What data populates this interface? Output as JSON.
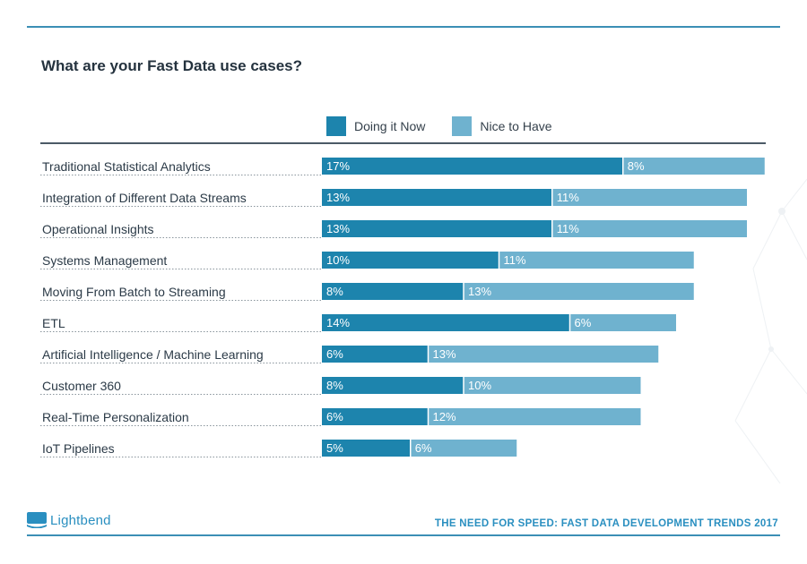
{
  "title": "What are your Fast Data use cases?",
  "colors": {
    "doing": "#1d84ad",
    "nice": "#6fb2cf",
    "accent": "#2a8fc0",
    "rule": "#3b8fb5"
  },
  "legend": [
    {
      "label": "Doing it Now",
      "color": "#1d84ad"
    },
    {
      "label": "Nice to Have",
      "color": "#6fb2cf"
    }
  ],
  "chart_data": {
    "type": "bar",
    "orientation": "horizontal",
    "stacked": true,
    "categories": [
      "Traditional Statistical Analytics",
      "Integration of Different Data Streams",
      "Operational  Insights",
      "Systems Management",
      "Moving From Batch to Streaming",
      "ETL",
      "Artificial Intelligence / Machine Learning",
      "Customer 360",
      "Real-Time Personalization",
      "IoT Pipelines"
    ],
    "series": [
      {
        "name": "Doing it Now",
        "values": [
          17,
          13,
          13,
          10,
          8,
          14,
          6,
          8,
          6,
          5
        ],
        "labels": [
          "17%",
          "13%",
          "13%",
          "10%",
          "8%",
          "14%",
          "6%",
          "8%",
          "6%",
          "5%"
        ]
      },
      {
        "name": "Nice to Have",
        "values": [
          8,
          11,
          11,
          11,
          13,
          6,
          13,
          10,
          12,
          6
        ],
        "labels": [
          "8%",
          "11%",
          "11%",
          "11%",
          "13%",
          "6%",
          "13%",
          "10%",
          "12%",
          "6%"
        ]
      }
    ],
    "legend_position": "top",
    "grid": false
  },
  "footer": {
    "logo_text": "Lightbend",
    "report_title": "THE NEED FOR SPEED: FAST DATA DEVELOPMENT TRENDS 2017"
  }
}
